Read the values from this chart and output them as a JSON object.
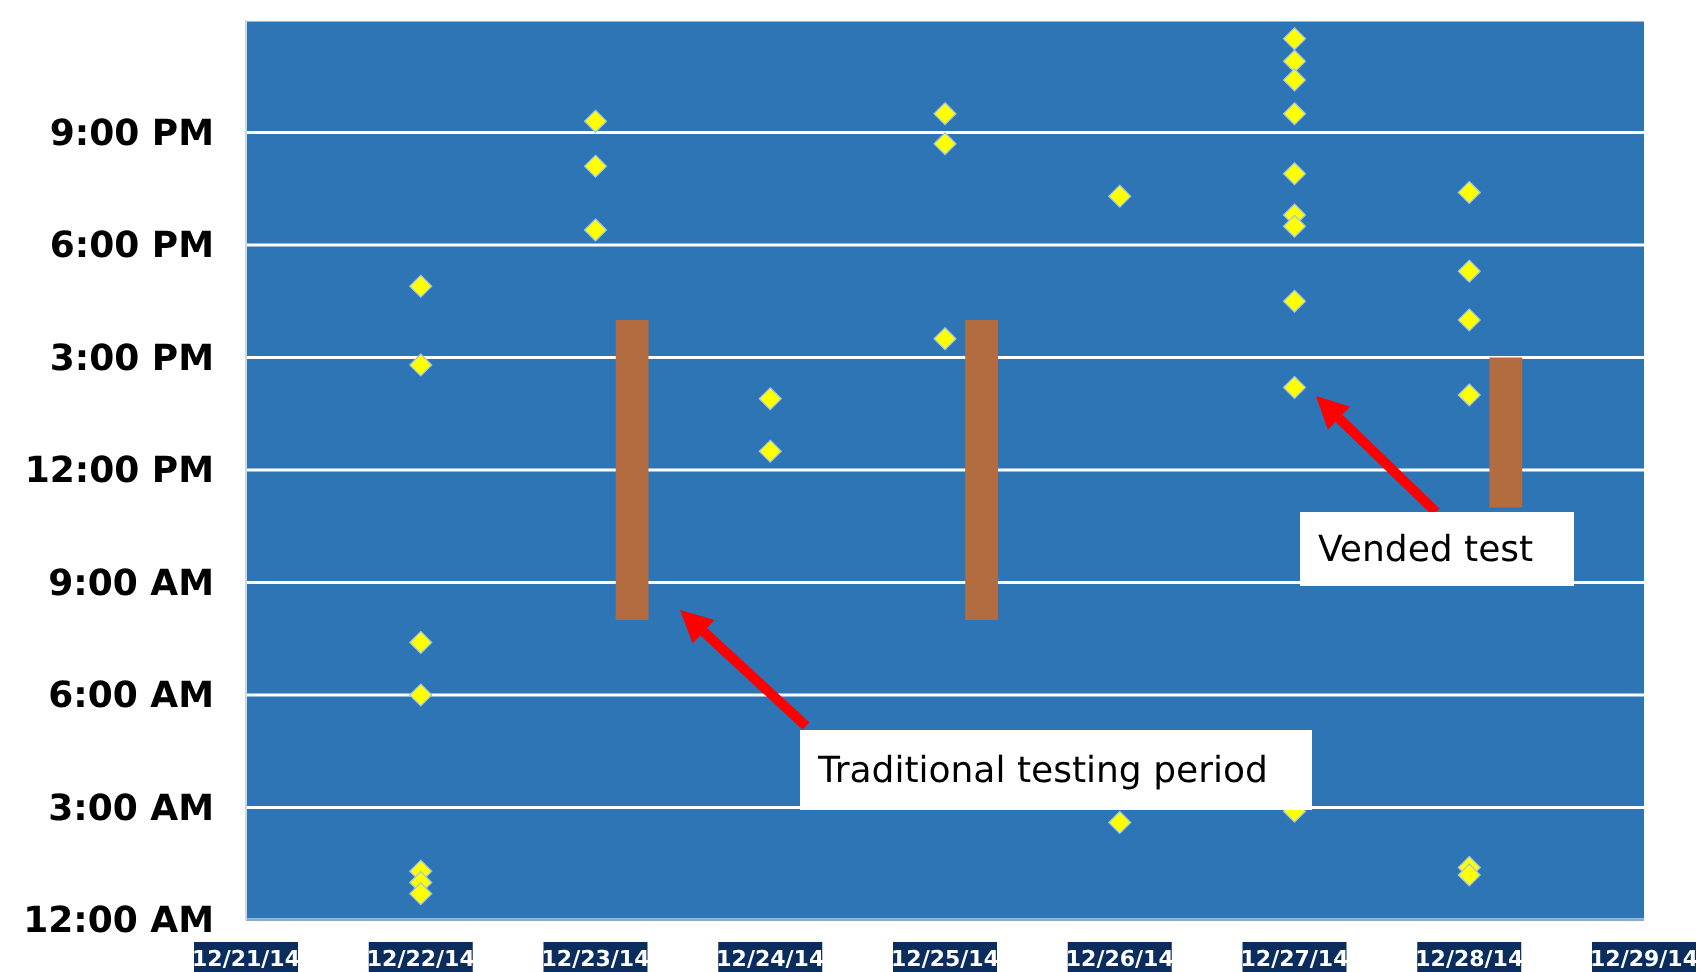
{
  "chart_data": {
    "type": "scatter",
    "marker": "diamond",
    "grid": "y",
    "xlim": [
      "--12-21",
      "--12-29"
    ],
    "xticks": [
      {
        "value": "--12-21",
        "label": "12/21/14"
      },
      {
        "value": "--12-22",
        "label": "12/22/14"
      },
      {
        "value": "--12-23",
        "label": "12/23/14"
      },
      {
        "value": "--12-24",
        "label": "12/24/14"
      },
      {
        "value": "--12-25",
        "label": "12/25/14"
      },
      {
        "value": "--12-26",
        "label": "12/26/14"
      },
      {
        "value": "--12-27",
        "label": "12/27/14"
      },
      {
        "value": "--12-28",
        "label": "12/28/14"
      },
      {
        "value": "--12-29",
        "label": "12/29/14"
      }
    ],
    "ylim": [
      0,
      24
    ],
    "yticks": [
      {
        "value": 0,
        "label": "12:00 AM"
      },
      {
        "value": 3,
        "label": "3:00 AM"
      },
      {
        "value": 6,
        "label": "6:00 AM"
      },
      {
        "value": 9,
        "label": "9:00 AM"
      },
      {
        "value": 12,
        "label": "12:00 PM"
      },
      {
        "value": 15,
        "label": "3:00 PM"
      },
      {
        "value": 18,
        "label": "6:00 PM"
      },
      {
        "value": 21,
        "label": "9:00 PM"
      },
      {
        "value": 24,
        "label": null
      }
    ],
    "series": [
      {
        "type": "bar",
        "color": "#b36b40",
        "x": [
          "--12-23T05:00",
          "--12-25T05:00",
          "--12-28T05:00"
        ],
        "base": [
          8,
          8,
          11
        ],
        "values": [
          8,
          8,
          4
        ]
      },
      {
        "color": "#ffff00",
        "x": [
          "--12-22",
          "--12-22",
          "--12-22",
          "--12-22",
          "--12-22",
          "--12-22",
          "--12-22",
          "--12-23",
          "--12-23",
          "--12-23",
          "--12-24",
          "--12-24",
          "--12-25",
          "--12-25",
          "--12-25",
          "--12-26",
          "--12-26",
          "--12-27",
          "--12-27",
          "--12-27",
          "--12-27",
          "--12-27",
          "--12-27",
          "--12-27",
          "--12-27",
          "--12-27",
          "--12-27",
          "--12-28",
          "--12-28",
          "--12-28",
          "--12-28",
          "--12-28",
          "--12-28"
        ],
        "values": [
          16.9,
          14.8,
          7.4,
          6.0,
          1.3,
          1.0,
          0.7,
          21.3,
          20.1,
          18.4,
          13.9,
          12.5,
          21.5,
          20.7,
          15.5,
          19.3,
          2.6,
          23.5,
          22.9,
          22.4,
          21.5,
          19.9,
          18.8,
          18.5,
          16.5,
          14.2,
          2.9,
          19.4,
          17.3,
          16.0,
          14.0,
          1.4,
          1.2
        ]
      }
    ],
    "annotations": [
      "Traditional testing period",
      "Vended test"
    ]
  }
}
